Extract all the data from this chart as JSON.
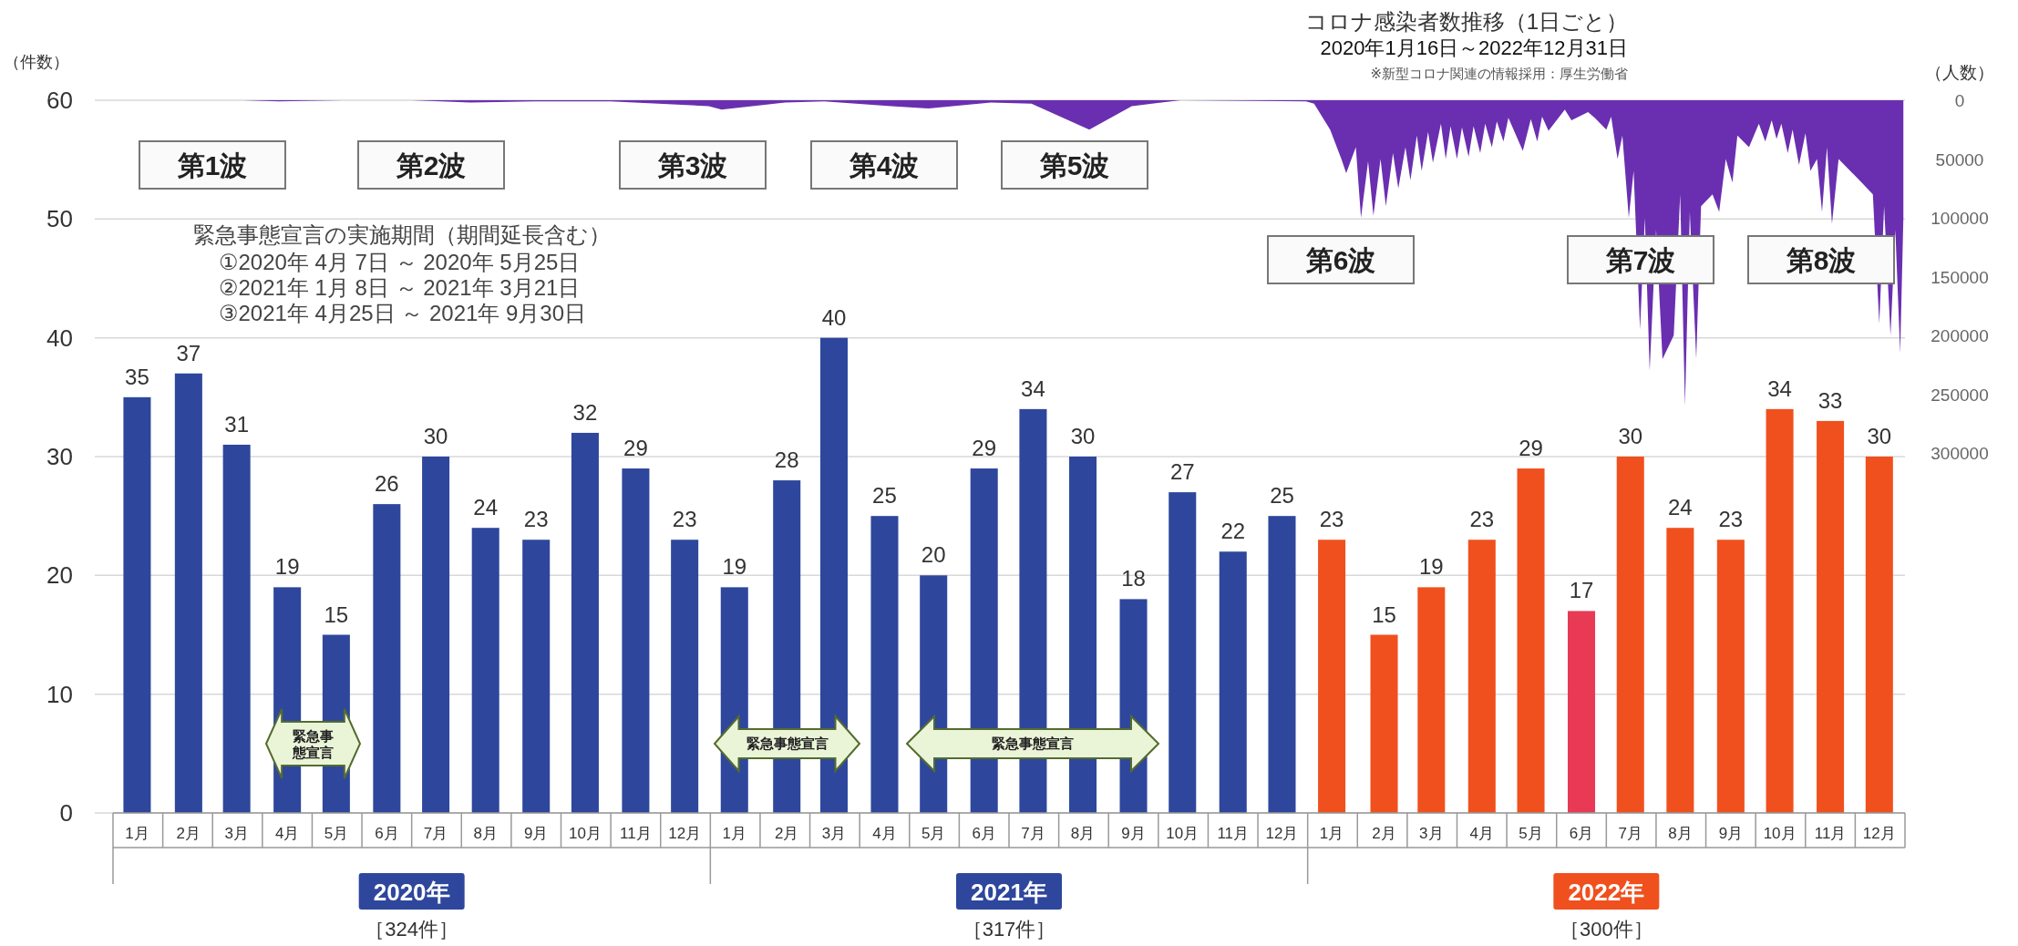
{
  "chart_data": {
    "type": "bar",
    "title": "コロナ感染者数推移（1日ごと）",
    "subtitle": "2020年1月16日～2022年12月31日",
    "ylabel": "（件数）",
    "y2label": "（人数）",
    "x": [
      "2020-01-16",
      "2020-02-16",
      "2020-03-16",
      "2020-04-16",
      "2020-05-16",
      "2020-06-16",
      "2020-07-16",
      "2020-08-16",
      "2020-09-16",
      "2020-10-16",
      "2020-11-16",
      "2020-12-16",
      "2021-01-16",
      "2021-02-16",
      "2021-03-16",
      "2021-04-16",
      "2021-05-16",
      "2021-06-16",
      "2021-07-16",
      "2021-08-16",
      "2021-09-16",
      "2021-10-16",
      "2021-11-16",
      "2021-12-16",
      "2022-01-16",
      "2022-02-16",
      "2022-03-16",
      "2022-04-16",
      "2022-05-16",
      "2022-06-16",
      "2022-07-16",
      "2022-08-16",
      "2022-09-16",
      "2022-10-16",
      "2022-11-16",
      "2022-12-16"
    ],
    "xlim": [
      "2020-01-01",
      "2023-01-01"
    ],
    "xticks": [
      {
        "value": "2020-01-16",
        "label": "1月"
      },
      {
        "value": "2020-02-16",
        "label": "2月"
      },
      {
        "value": "2020-03-16",
        "label": "3月"
      },
      {
        "value": "2020-04-16",
        "label": "4月"
      },
      {
        "value": "2020-05-16",
        "label": "5月"
      },
      {
        "value": "2020-06-16",
        "label": "6月"
      },
      {
        "value": "2020-07-16",
        "label": "7月"
      },
      {
        "value": "2020-08-16",
        "label": "8月"
      },
      {
        "value": "2020-09-16",
        "label": "9月"
      },
      {
        "value": "2020-10-16",
        "label": "10月"
      },
      {
        "value": "2020-11-16",
        "label": "11月"
      },
      {
        "value": "2020-12-16",
        "label": "12月"
      },
      {
        "value": "2021-01-16",
        "label": "1月"
      },
      {
        "value": "2021-02-16",
        "label": "2月"
      },
      {
        "value": "2021-03-16",
        "label": "3月"
      },
      {
        "value": "2021-04-16",
        "label": "4月"
      },
      {
        "value": "2021-05-16",
        "label": "5月"
      },
      {
        "value": "2021-06-16",
        "label": "6月"
      },
      {
        "value": "2021-07-16",
        "label": "7月"
      },
      {
        "value": "2021-08-16",
        "label": "8月"
      },
      {
        "value": "2021-09-16",
        "label": "9月"
      },
      {
        "value": "2021-10-16",
        "label": "10月"
      },
      {
        "value": "2021-11-16",
        "label": "11月"
      },
      {
        "value": "2021-12-16",
        "label": "12月"
      },
      {
        "value": "2022-01-16",
        "label": "1月"
      },
      {
        "value": "2022-02-16",
        "label": "2月"
      },
      {
        "value": "2022-03-16",
        "label": "3月"
      },
      {
        "value": "2022-04-16",
        "label": "4月"
      },
      {
        "value": "2022-05-16",
        "label": "5月"
      },
      {
        "value": "2022-06-16",
        "label": "6月"
      },
      {
        "value": "2022-07-16",
        "label": "7月"
      },
      {
        "value": "2022-08-16",
        "label": "8月"
      },
      {
        "value": "2022-09-16",
        "label": "9月"
      },
      {
        "value": "2022-10-16",
        "label": "10月"
      },
      {
        "value": "2022-11-16",
        "label": "11月"
      },
      {
        "value": "2022-12-16",
        "label": "12月"
      }
    ],
    "ylim": [
      0,
      60
    ],
    "yticks": [
      0,
      10,
      20,
      30,
      40,
      50,
      60
    ],
    "y2lim": [
      606000,
      0
    ],
    "y2ticks": [
      0,
      50000,
      100000,
      150000,
      200000,
      250000,
      300000
    ],
    "grid": "y",
    "series": [
      {
        "data_labels": true,
        "colors": [
          "#2e479c",
          "#2e479c",
          "#2e479c",
          "#2e479c",
          "#2e479c",
          "#2e479c",
          "#2e479c",
          "#2e479c",
          "#2e479c",
          "#2e479c",
          "#2e479c",
          "#2e479c",
          "#2e479c",
          "#2e479c",
          "#2e479c",
          "#2e479c",
          "#2e479c",
          "#2e479c",
          "#2e479c",
          "#2e479c",
          "#2e479c",
          "#2e479c",
          "#2e479c",
          "#2e479c",
          "#f0501e",
          "#f0501e",
          "#f0501e",
          "#f0501e",
          "#f0501e",
          "#e83a55",
          "#f0501e",
          "#f0501e",
          "#f0501e",
          "#f0501e",
          "#f0501e",
          "#f0501e"
        ],
        "values": [
          35,
          37,
          31,
          19,
          15,
          26,
          30,
          24,
          23,
          32,
          29,
          23,
          19,
          28,
          40,
          25,
          20,
          29,
          34,
          30,
          18,
          27,
          22,
          25,
          23,
          15,
          19,
          23,
          29,
          17,
          30,
          24,
          23,
          34,
          33,
          30
        ]
      },
      {
        "type": "area",
        "axis": "y2",
        "color": "#6a2fb0",
        "x": [
          "2020-01-16",
          "2020-03-20",
          "2020-04-11",
          "2020-05-20",
          "2020-07-01",
          "2020-08-07",
          "2020-09-15",
          "2020-11-01",
          "2020-12-31",
          "2021-01-08",
          "2021-02-15",
          "2021-03-10",
          "2021-04-20",
          "2021-05-13",
          "2021-06-20",
          "2021-07-15",
          "2021-08-20",
          "2021-09-15",
          "2021-10-15",
          "2021-12-31",
          "2022-01-05",
          "2022-01-15",
          "2022-01-22",
          "2022-01-25",
          "2022-01-31",
          "2022-02-03",
          "2022-02-07",
          "2022-02-10",
          "2022-02-14",
          "2022-02-17",
          "2022-02-21",
          "2022-02-24",
          "2022-02-28",
          "2022-03-03",
          "2022-03-07",
          "2022-03-10",
          "2022-03-14",
          "2022-03-17",
          "2022-03-22",
          "2022-03-25",
          "2022-03-28",
          "2022-04-01",
          "2022-04-04",
          "2022-04-08",
          "2022-04-11",
          "2022-04-15",
          "2022-04-18",
          "2022-04-22",
          "2022-04-25",
          "2022-04-29",
          "2022-05-02",
          "2022-05-11",
          "2022-05-16",
          "2022-05-20",
          "2022-05-23",
          "2022-05-27",
          "2022-06-06",
          "2022-06-10",
          "2022-06-20",
          "2022-06-24",
          "2022-07-01",
          "2022-07-04",
          "2022-07-08",
          "2022-07-11",
          "2022-07-15",
          "2022-07-18",
          "2022-07-22",
          "2022-07-25",
          "2022-07-28",
          "2022-08-01",
          "2022-08-05",
          "2022-08-12",
          "2022-08-16",
          "2022-08-19",
          "2022-08-22",
          "2022-08-26",
          "2022-08-29",
          "2022-09-05",
          "2022-09-09",
          "2022-09-13",
          "2022-09-17",
          "2022-09-20",
          "2022-09-27",
          "2022-10-03",
          "2022-10-07",
          "2022-10-11",
          "2022-10-14",
          "2022-10-17",
          "2022-10-21",
          "2022-10-24",
          "2022-10-28",
          "2022-11-01",
          "2022-11-04",
          "2022-11-08",
          "2022-11-11",
          "2022-11-14",
          "2022-11-17",
          "2022-11-21",
          "2022-11-28",
          "2022-12-05",
          "2022-12-12",
          "2022-12-16",
          "2022-12-19",
          "2022-12-23",
          "2022-12-26",
          "2022-12-29",
          "2022-12-31"
        ],
        "values": [
          0,
          0,
          1000,
          0,
          0,
          2000,
          1000,
          1000,
          5000,
          8000,
          2000,
          1000,
          5000,
          7000,
          2000,
          3000,
          25000,
          5000,
          0,
          1000,
          3000,
          25000,
          50000,
          62000,
          40000,
          100000,
          52000,
          98000,
          50000,
          90000,
          45000,
          75000,
          40000,
          68000,
          30000,
          60000,
          27000,
          53000,
          20000,
          50000,
          22000,
          50000,
          23000,
          48000,
          22000,
          45000,
          20000,
          40000,
          18000,
          35000,
          15000,
          43000,
          16000,
          35000,
          14000,
          26000,
          8000,
          17000,
          10000,
          15000,
          25000,
          14000,
          50000,
          30000,
          100000,
          60000,
          195000,
          100000,
          230000,
          110000,
          220000,
          200000,
          80000,
          260000,
          95000,
          220000,
          90000,
          80000,
          95000,
          50000,
          70000,
          30000,
          40000,
          20000,
          35000,
          17000,
          33000,
          20000,
          45000,
          25000,
          55000,
          28000,
          60000,
          50000,
          95000,
          40000,
          105000,
          50000,
          60000,
          70000,
          80000,
          190000,
          90000,
          200000,
          110000,
          215000,
          100000
        ]
      }
    ],
    "annotations": [
      "※新型コロナ関連の情報採用：厚生労働省",
      "第1波",
      "第2波",
      "第3波",
      "第4波",
      "第5波",
      "第6波",
      "第7波",
      "第8波",
      "緊急事態宣言の実施期間（期間延長含む）",
      "①2020年 4月 7日 ～ 2020年 5月25日",
      "②2021年 1月 8日 ～ 2021年 3月21日",
      "③2021年 4月25日 ～ 2021年 9月30日",
      "2020年",
      "［324件］",
      "2021年",
      "［317件］",
      "2022年",
      "［300件］",
      "緊急事態宣言",
      "緊急事態宣言",
      "緊急事態宣言"
    ]
  }
}
